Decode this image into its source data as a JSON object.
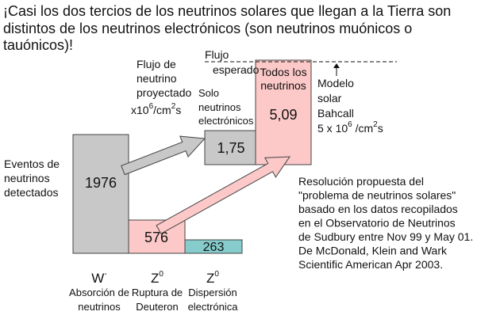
{
  "title": [
    "¡Casi los dos tercios de los neutrinos solares que llegan a la Tierra son",
    "distintos de los neutrinos electrónicos (son neutrinos muónicos o",
    "tauónicos)!"
  ],
  "detected_label": [
    "Eventos de",
    "neutrinos",
    "detectados"
  ],
  "projected_flux_label": {
    "lines": [
      "Flujo de",
      "neutrino",
      "proyectado"
    ],
    "unit": [
      "x10",
      "6",
      "/cm",
      "2",
      "s"
    ]
  },
  "expected_flux_label": [
    "Flujo",
    "esperado"
  ],
  "only_electron_label": [
    "Solo",
    "neutrinos",
    "electrónicos"
  ],
  "all_label": [
    "Todos los",
    "neutrinos"
  ],
  "model_label": {
    "lines": [
      "Modelo",
      "solar",
      "Bahcall"
    ],
    "unit": [
      "5 x 10",
      "6",
      " /cm",
      "2",
      "s"
    ]
  },
  "boxes": [
    "1976",
    "576",
    "263",
    "1,75",
    "5,09"
  ],
  "resolution": [
    "Resolución propuesta del",
    "\"problema de neutrinos solares\"",
    "basado en los datos recopilados",
    "en el Observatorio de Neutrinos",
    "de Sudbury entre Nov 99 y May 01.",
    "De McDonald, Klein and Wark",
    "Scientific American Apr 2003."
  ],
  "reactions": [
    {
      "symbol": "W",
      "sup": "-",
      "lines": [
        "Absorción de",
        "neutrinos"
      ]
    },
    {
      "symbol": "Z",
      "sup": "0",
      "lines": [
        "Ruptura de",
        "Deuteron"
      ]
    },
    {
      "symbol": "Z",
      "sup": "0",
      "lines": [
        "Dispersión",
        "electrónica"
      ]
    }
  ]
}
